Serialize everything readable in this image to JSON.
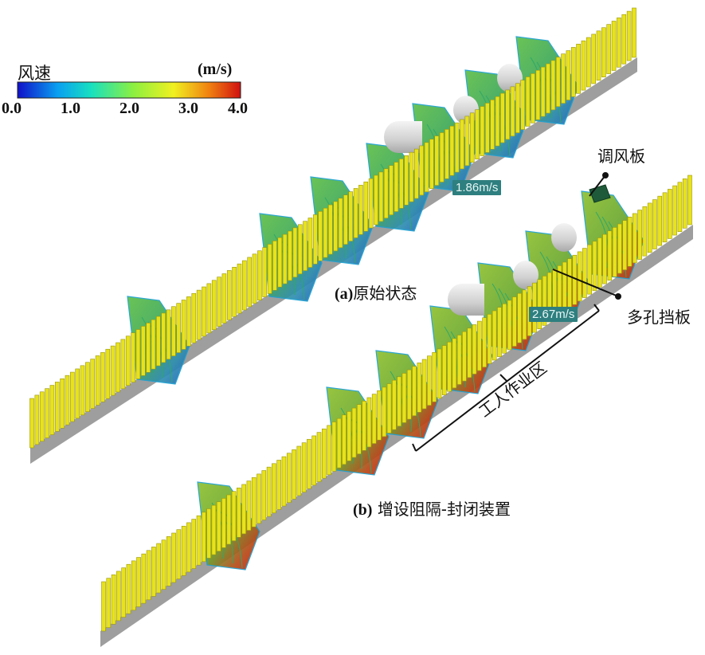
{
  "legend": {
    "title": "风速",
    "unit": "(m/s)",
    "ticks": [
      "0.0",
      "1.0",
      "2.0",
      "3.0",
      "4.0"
    ],
    "colors": [
      "#1010c8",
      "#0aa0f0",
      "#18e0c0",
      "#8cf040",
      "#f0f020",
      "#f08010",
      "#d01010"
    ]
  },
  "panels": {
    "a": {
      "label": "(a)",
      "title": "原始状态",
      "speed": "1.86m/s"
    },
    "b": {
      "label": "(b)",
      "title": "增设阻隔-封闭装置",
      "speed": "2.67m/s"
    }
  },
  "callouts": {
    "damper": "调风板",
    "baffle": "多孔挡板",
    "work_zone": "工人作业区"
  },
  "colors": {
    "post": "#e8e21a",
    "post_edge": "#9a9610",
    "base": "#9e9e9e",
    "contour": "#2fa86a",
    "label_box": "#2e7f7f"
  }
}
